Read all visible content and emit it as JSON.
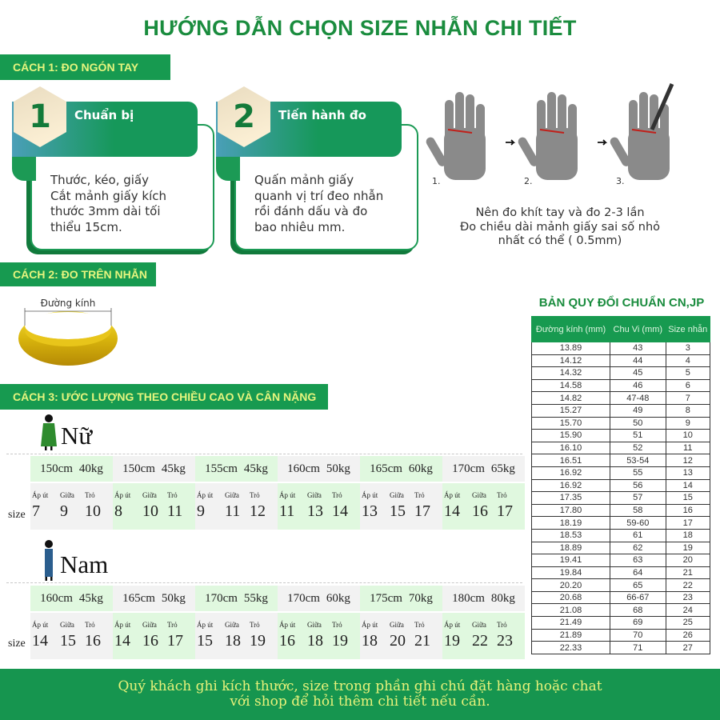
{
  "title": "HƯỚNG DẪN CHỌN SIZE NHẪN CHI TIẾT",
  "method1": {
    "label": "CÁCH 1: ĐO NGÓN TAY",
    "steps": [
      {
        "number": "1",
        "title": "Chuẩn bị",
        "lines": [
          "Thước, kéo, giấy",
          "Cắt mảnh giấy kích",
          "thước 3mm dài tối",
          "thiểu 15cm."
        ]
      },
      {
        "number": "2",
        "title": "Tiến hành đo",
        "lines": [
          "Quấn mảnh giấy",
          "quanh vị trí đeo nhẫn",
          "rồi đánh dấu và đo",
          "bao nhiêu mm."
        ]
      }
    ],
    "hand_steps": [
      "1.",
      "2.",
      "3."
    ],
    "notes": [
      "Nên đo khít tay và đo 2-3 lần",
      "Đo chiều dài mảnh giấy sai số nhỏ",
      "nhất có thể ( 0.5mm)"
    ]
  },
  "method2": {
    "label": "CÁCH 2: ĐO TRÊN NHẪN",
    "ring_label": "Đường kính"
  },
  "method3": {
    "label": "CÁCH 3: ƯỚC LƯỢNG THEO CHIỀU CAO VÀ CÂN NẶNG",
    "size_label": "size",
    "fingers": [
      "Áp út",
      "Giữa",
      "Trỏ"
    ],
    "female": {
      "label": "Nữ",
      "groups": [
        {
          "height": "150cm",
          "weight": "40kg",
          "sizes": [
            "7",
            "9",
            "10"
          ]
        },
        {
          "height": "150cm",
          "weight": "45kg",
          "sizes": [
            "8",
            "10",
            "11"
          ]
        },
        {
          "height": "155cm",
          "weight": "45kg",
          "sizes": [
            "9",
            "11",
            "12"
          ]
        },
        {
          "height": "160cm",
          "weight": "50kg",
          "sizes": [
            "11",
            "13",
            "14"
          ]
        },
        {
          "height": "165cm",
          "weight": "60kg",
          "sizes": [
            "13",
            "15",
            "17"
          ]
        },
        {
          "height": "170cm",
          "weight": "65kg",
          "sizes": [
            "14",
            "16",
            "17"
          ]
        }
      ]
    },
    "male": {
      "label": "Nam",
      "groups": [
        {
          "height": "160cm",
          "weight": "45kg",
          "sizes": [
            "14",
            "15",
            "16"
          ]
        },
        {
          "height": "165cm",
          "weight": "50kg",
          "sizes": [
            "14",
            "16",
            "17"
          ]
        },
        {
          "height": "170cm",
          "weight": "55kg",
          "sizes": [
            "15",
            "18",
            "19"
          ]
        },
        {
          "height": "170cm",
          "weight": "60kg",
          "sizes": [
            "16",
            "18",
            "19"
          ]
        },
        {
          "height": "175cm",
          "weight": "70kg",
          "sizes": [
            "18",
            "20",
            "21"
          ]
        },
        {
          "height": "180cm",
          "weight": "80kg",
          "sizes": [
            "19",
            "22",
            "23"
          ]
        }
      ]
    }
  },
  "conversion": {
    "title": "BẢN QUY ĐỔI CHUẨN CN,JP",
    "headers": [
      "Đường kính (mm)",
      "Chu Vi (mm)",
      "Size nhẫn"
    ],
    "rows": [
      [
        "13.89",
        "43",
        "3"
      ],
      [
        "14.12",
        "44",
        "4"
      ],
      [
        "14.32",
        "45",
        "5"
      ],
      [
        "14.58",
        "46",
        "6"
      ],
      [
        "14.82",
        "47-48",
        "7"
      ],
      [
        "15.27",
        "49",
        "8"
      ],
      [
        "15.70",
        "50",
        "9"
      ],
      [
        "15.90",
        "51",
        "10"
      ],
      [
        "16.10",
        "52",
        "11"
      ],
      [
        "16.51",
        "53-54",
        "12"
      ],
      [
        "16.92",
        "55",
        "13"
      ],
      [
        "16.92",
        "56",
        "14"
      ],
      [
        "17.35",
        "57",
        "15"
      ],
      [
        "17.80",
        "58",
        "16"
      ],
      [
        "18.19",
        "59-60",
        "17"
      ],
      [
        "18.53",
        "61",
        "18"
      ],
      [
        "18.89",
        "62",
        "19"
      ],
      [
        "19.41",
        "63",
        "20"
      ],
      [
        "19.84",
        "64",
        "21"
      ],
      [
        "20.20",
        "65",
        "22"
      ],
      [
        "20.68",
        "66-67",
        "23"
      ],
      [
        "21.08",
        "68",
        "24"
      ],
      [
        "21.49",
        "69",
        "25"
      ],
      [
        "21.89",
        "70",
        "26"
      ],
      [
        "22.33",
        "71",
        "27"
      ]
    ]
  },
  "footer": [
    "Quý khách ghi kích thước, size trong phần ghi chú đặt hàng hoặc chat",
    "với shop để hỏi thêm chi tiết nếu cần."
  ],
  "colors": {
    "brand_green": "#179a50",
    "banner_text": "#e6f57e",
    "cell_green": "#e0f8df",
    "cell_grey": "#f2f2f2"
  }
}
